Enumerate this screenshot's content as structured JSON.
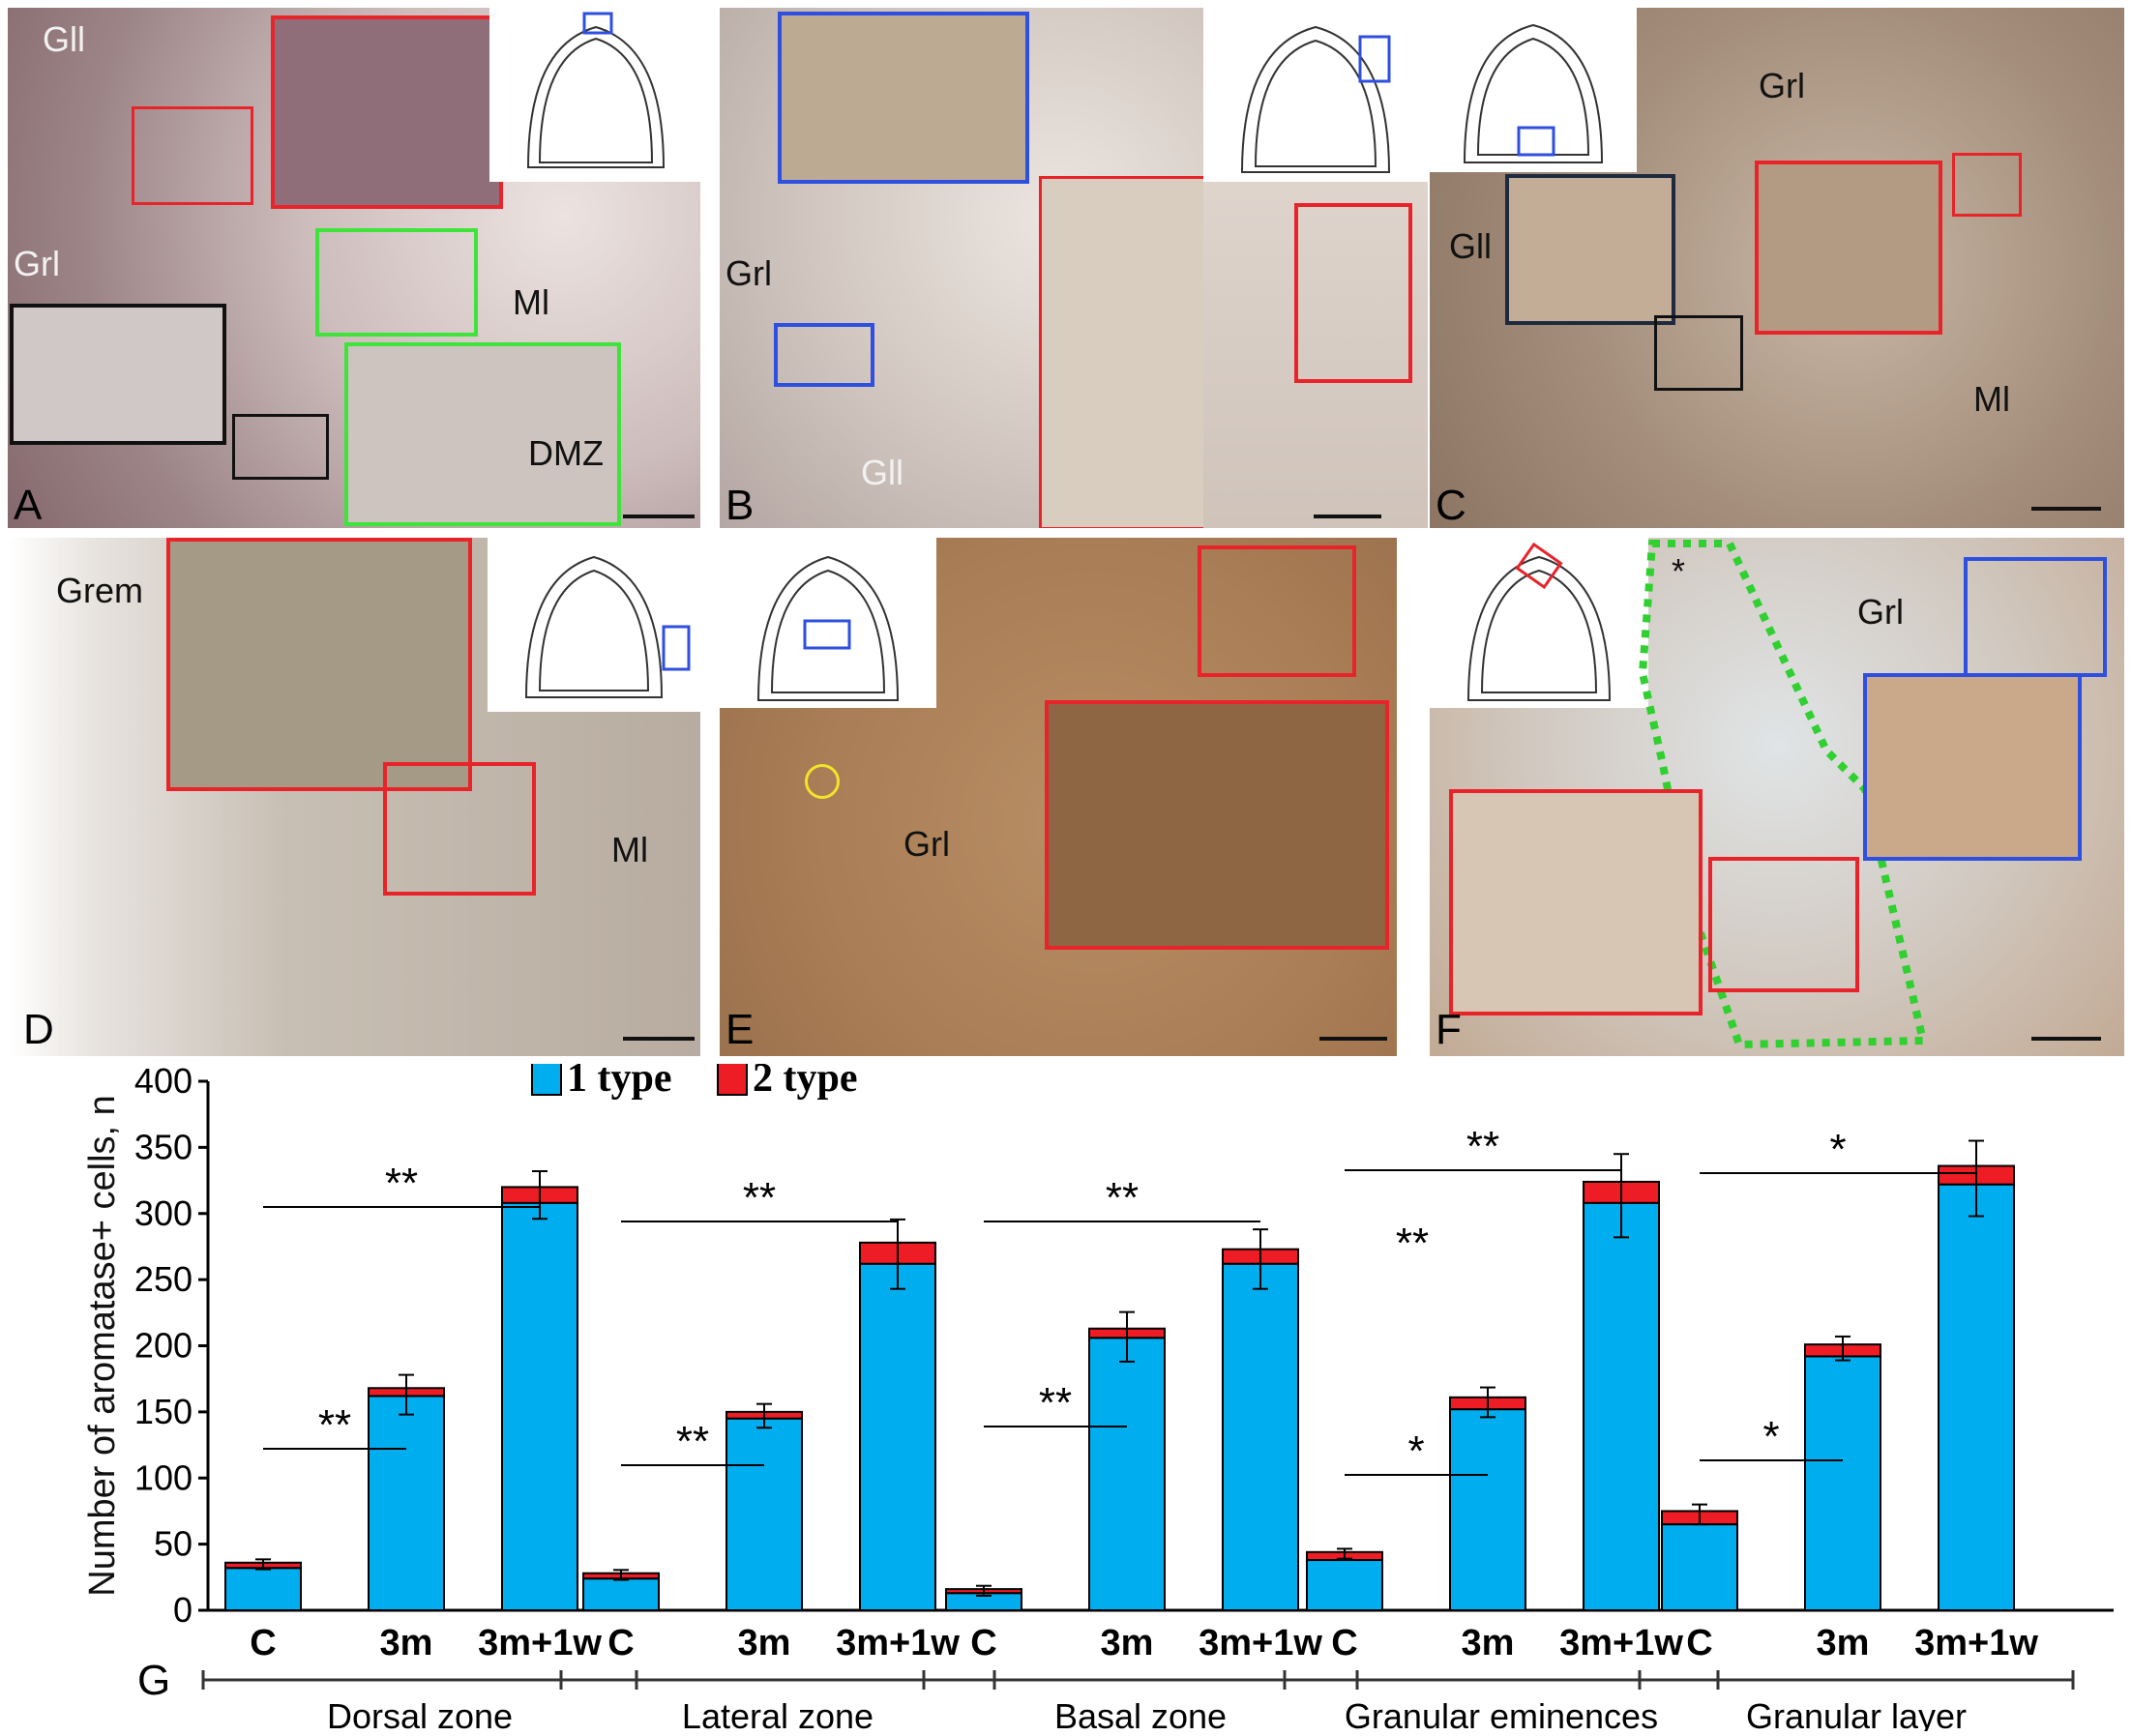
{
  "panels": [
    {
      "letter": "A",
      "labels": [
        "Gll",
        "Grl",
        "Ml",
        "DMZ"
      ]
    },
    {
      "letter": "B",
      "labels": [
        "Grl",
        "Gll"
      ]
    },
    {
      "letter": "C",
      "labels": [
        "Grl",
        "Gll",
        "Ml"
      ]
    },
    {
      "letter": "D",
      "labels": [
        "Grem",
        "Ml"
      ]
    },
    {
      "letter": "E",
      "labels": [
        "Grl"
      ]
    },
    {
      "letter": "F",
      "labels": [
        "*",
        "Grl"
      ]
    }
  ],
  "colors": {
    "type1": "#00aeef",
    "type2": "#ee1c24",
    "box_red": "#e8232a",
    "box_green": "#3ee43a",
    "box_blue": "#2f4fe0",
    "box_black": "#111111",
    "dotted_green": "#2fd02f"
  },
  "chart_data": {
    "type": "bar",
    "stacked": true,
    "panel_letter": "G",
    "ylabel": "Number of aromatase+ cells, n",
    "ylim": [
      0,
      400
    ],
    "yticks": [
      0,
      50,
      100,
      150,
      200,
      250,
      300,
      350,
      400
    ],
    "legend": {
      "position": "top",
      "items": [
        "1 type",
        "2 type"
      ]
    },
    "groups": [
      {
        "name": "Dorsal zone",
        "categories": [
          "C",
          "3m",
          "3m+1w"
        ],
        "type1": [
          32,
          162,
          308
        ],
        "type2": [
          4,
          6,
          12
        ],
        "err": [
          5,
          20,
          24
        ],
        "sig": [
          {
            "from": "C",
            "to": "3m",
            "label": "**"
          },
          {
            "from": "C",
            "to": "3m+1w",
            "label": "**"
          }
        ]
      },
      {
        "name": "Lateral zone",
        "categories": [
          "C",
          "3m",
          "3m+1w"
        ],
        "type1": [
          24,
          145,
          262
        ],
        "type2": [
          4,
          5,
          16
        ],
        "err": [
          5,
          12,
          35
        ],
        "sig": [
          {
            "from": "C",
            "to": "3m",
            "label": "**"
          },
          {
            "from": "C",
            "to": "3m+1w",
            "label": "**"
          }
        ]
      },
      {
        "name": "Basal zone",
        "categories": [
          "C",
          "3m",
          "3m+1w"
        ],
        "type1": [
          13,
          206,
          262
        ],
        "type2": [
          3,
          7,
          11
        ],
        "err": [
          5,
          25,
          30
        ],
        "sig": [
          {
            "from": "C",
            "to": "3m",
            "label": "**"
          },
          {
            "from": "C",
            "to": "3m+1w",
            "label": "**"
          }
        ]
      },
      {
        "name": "Granular eminences",
        "categories": [
          "C",
          "3m",
          "3m+1w"
        ],
        "type1": [
          38,
          152,
          308
        ],
        "type2": [
          6,
          9,
          16
        ],
        "err": [
          5,
          15,
          42
        ],
        "sig": [
          {
            "from": "C",
            "to": "3m",
            "label": "*"
          },
          {
            "from": "C",
            "to": "3m+1w",
            "label": "**"
          }
        ],
        "extra_label": "**"
      },
      {
        "name": "Granular layer",
        "categories": [
          "C",
          "3m",
          "3m+1w"
        ],
        "type1": [
          65,
          192,
          322
        ],
        "type2": [
          10,
          9,
          14
        ],
        "err": [
          10,
          12,
          38
        ],
        "sig": [
          {
            "from": "C",
            "to": "3m",
            "label": "*"
          },
          {
            "from": "C",
            "to": "3m+1w",
            "label": "*"
          }
        ]
      }
    ]
  }
}
